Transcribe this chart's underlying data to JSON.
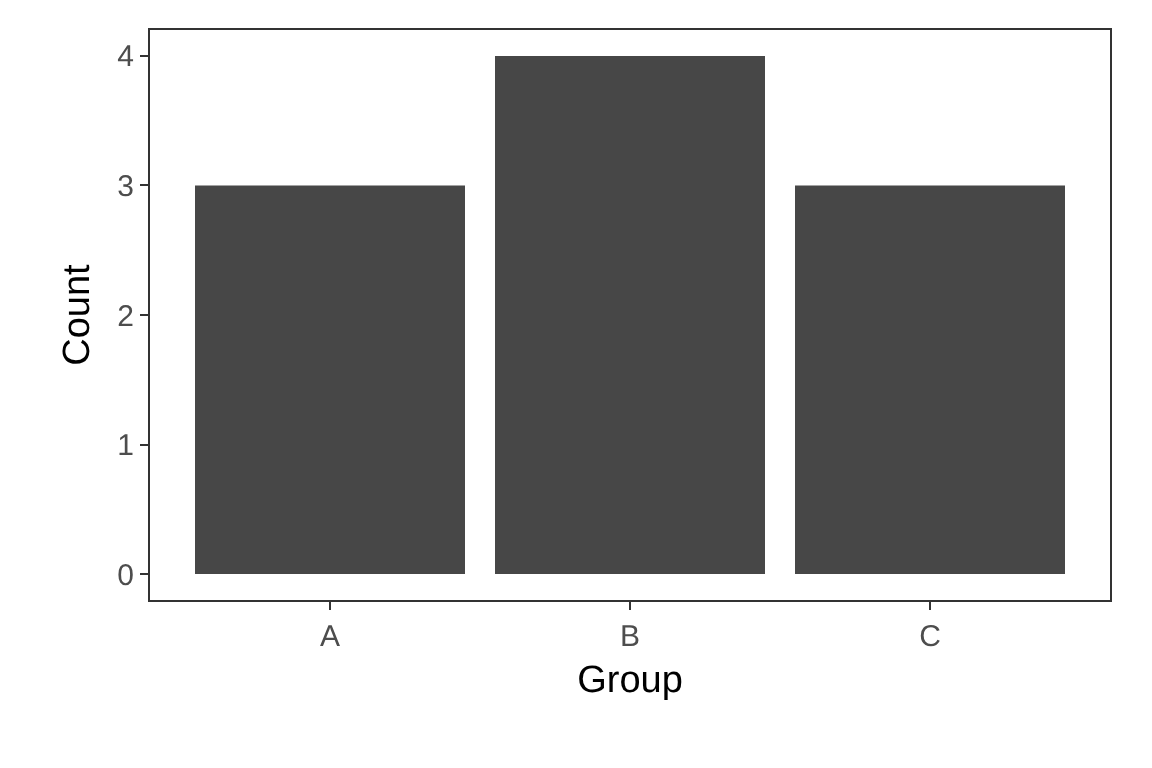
{
  "chart_data": {
    "type": "bar",
    "xlabel": "Group",
    "ylabel": "Count",
    "categories": [
      "A",
      "B",
      "C"
    ],
    "values": [
      3,
      4,
      3
    ],
    "color": "#474747",
    "ylim": [
      -0.2,
      4.2
    ],
    "yticks": [
      0,
      1,
      2,
      3,
      4
    ]
  }
}
